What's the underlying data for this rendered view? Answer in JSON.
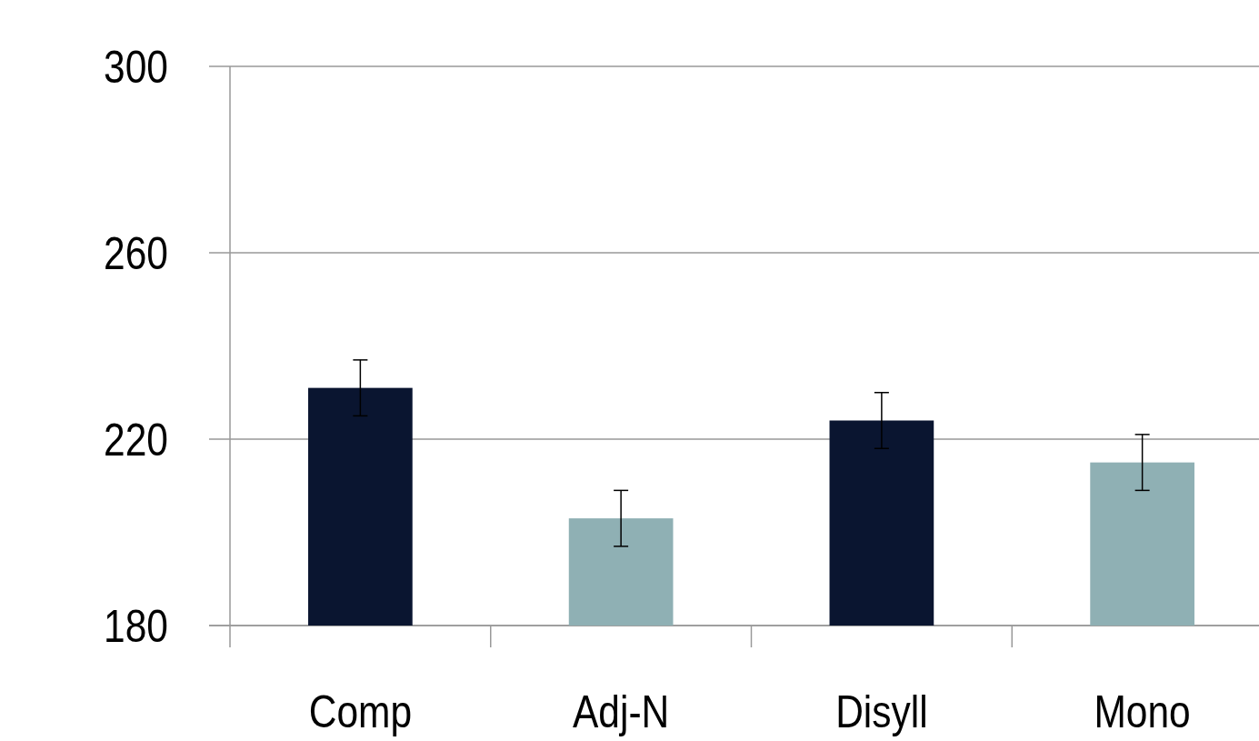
{
  "chart_data": {
    "type": "bar",
    "categories": [
      "Comp",
      "Adj-N",
      "Disyll",
      "Mono"
    ],
    "values": [
      231,
      203,
      224,
      215
    ],
    "colors": [
      "#0a1530",
      "#8fb0b4",
      "#0a1530",
      "#8fb0b4"
    ],
    "errors": [
      6,
      6,
      6,
      6
    ],
    "ylim": [
      180,
      300
    ],
    "yticks": [
      180,
      220,
      260,
      300
    ],
    "grid": "y"
  }
}
